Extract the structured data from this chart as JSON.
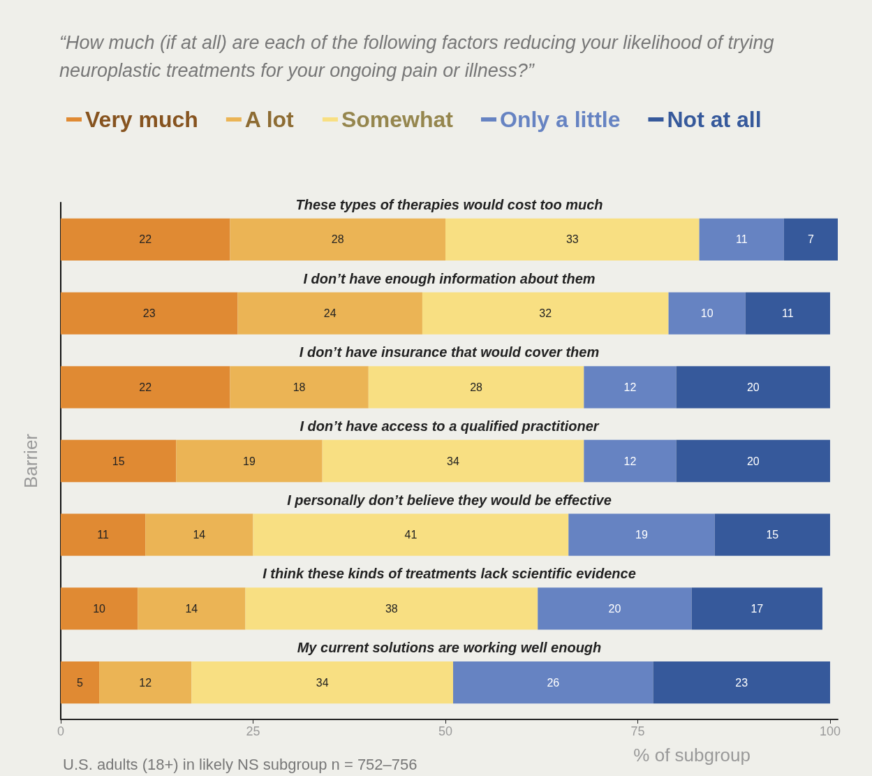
{
  "chart_data": {
    "type": "bar",
    "orientation": "horizontal",
    "stacked": true,
    "title": "“How much (if at all) are each of the following factors reducing your likelihood of trying neuroplastic treatments for your ongoing pain or illness?”",
    "categories": [
      "These types of therapies would cost too much",
      "I don’t have enough information about them",
      "I don’t have insurance that would cover them",
      "I don’t have access to a qualified practitioner",
      "I personally don’t believe they would be effective",
      "I think these kinds of treatments lack scientific evidence",
      "My current solutions are working well enough"
    ],
    "series": [
      {
        "name": "Very much",
        "color": "#e08a33",
        "values": [
          22,
          23,
          22,
          15,
          11,
          10,
          5
        ]
      },
      {
        "name": "A lot",
        "color": "#ebb455",
        "values": [
          28,
          24,
          18,
          19,
          14,
          14,
          12
        ]
      },
      {
        "name": "Somewhat",
        "color": "#f8df82",
        "values": [
          33,
          32,
          28,
          34,
          41,
          38,
          34
        ]
      },
      {
        "name": "Only a little",
        "color": "#6683c2",
        "values": [
          11,
          10,
          12,
          12,
          19,
          20,
          26
        ]
      },
      {
        "name": "Not at all",
        "color": "#36599b",
        "values": [
          7,
          11,
          20,
          20,
          15,
          17,
          23
        ]
      }
    ],
    "xlim": [
      0,
      101
    ],
    "xticks": [
      0,
      25,
      50,
      75,
      100
    ],
    "xlabel": "% of subgroup",
    "ylabel": "Barrier",
    "annotations": [
      "U.S. adults (18+) in likely NS subgroup n = 752–756"
    ],
    "data_labels": true,
    "grid": false,
    "legend": "top"
  }
}
